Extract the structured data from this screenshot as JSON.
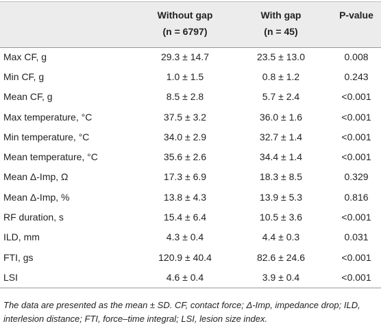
{
  "table": {
    "header": {
      "columns": [
        {
          "title": "Without gap",
          "n": "(n = 6797)"
        },
        {
          "title": "With gap",
          "n": "(n = 45)"
        }
      ],
      "p": "P-value"
    },
    "rows": [
      [
        "Max CF, g",
        "29.3 ± 14.7",
        "23.5 ± 13.0",
        "0.008"
      ],
      [
        "Min CF, g",
        "1.0 ± 1.5",
        "0.8 ± 1.2",
        "0.243"
      ],
      [
        "Mean CF, g",
        "8.5 ± 2.8",
        "5.7 ± 2.4",
        "<0.001"
      ],
      [
        "Max temperature, °C",
        "37.5 ± 3.2",
        "36.0 ± 1.6",
        "<0.001"
      ],
      [
        "Min temperature, °C",
        "34.0 ± 2.9",
        "32.7 ± 1.4",
        "<0.001"
      ],
      [
        "Mean temperature, °C",
        "35.6 ± 2.6",
        "34.4 ± 1.4",
        "<0.001"
      ],
      [
        "Mean Δ-Imp, Ω",
        "17.3 ± 6.9",
        "18.3 ± 8.5",
        "0.329"
      ],
      [
        "Mean Δ-Imp, %",
        "13.8 ± 4.3",
        "13.9 ± 5.3",
        "0.816"
      ],
      [
        "RF duration, s",
        "15.4 ± 6.4",
        "10.5 ± 3.6",
        "<0.001"
      ],
      [
        "ILD, mm",
        "4.3 ± 0.4",
        "4.4 ± 0.3",
        "0.031"
      ],
      [
        "FTI, gs",
        "120.9 ± 40.4",
        "82.6 ± 24.6",
        "<0.001"
      ],
      [
        "LSI",
        "4.6 ± 0.4",
        "3.9 ± 0.4",
        "<0.001"
      ]
    ],
    "footnote": "The data are presented as the mean ± SD. CF, contact force; Δ-Imp, impedance drop; ILD, interlesion distance; FTI, force–time integral; LSI, lesion size index."
  }
}
